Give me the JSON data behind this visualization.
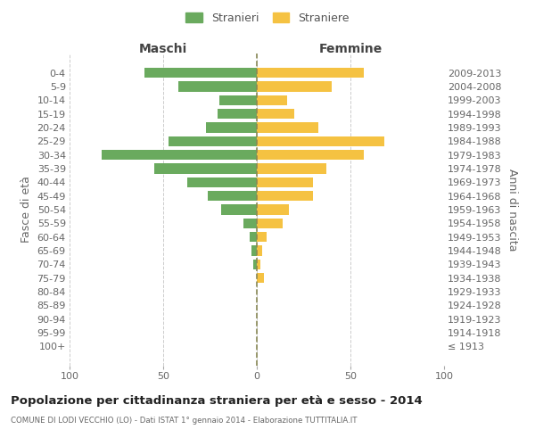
{
  "age_groups": [
    "100+",
    "95-99",
    "90-94",
    "85-89",
    "80-84",
    "75-79",
    "70-74",
    "65-69",
    "60-64",
    "55-59",
    "50-54",
    "45-49",
    "40-44",
    "35-39",
    "30-34",
    "25-29",
    "20-24",
    "15-19",
    "10-14",
    "5-9",
    "0-4"
  ],
  "birth_years": [
    "≤ 1913",
    "1914-1918",
    "1919-1923",
    "1924-1928",
    "1929-1933",
    "1934-1938",
    "1939-1943",
    "1944-1948",
    "1949-1953",
    "1954-1958",
    "1959-1963",
    "1964-1968",
    "1969-1973",
    "1974-1978",
    "1979-1983",
    "1984-1988",
    "1989-1993",
    "1994-1998",
    "1999-2003",
    "2004-2008",
    "2009-2013"
  ],
  "maschi": [
    0,
    0,
    0,
    0,
    0,
    0,
    2,
    3,
    4,
    7,
    19,
    26,
    37,
    55,
    83,
    47,
    27,
    21,
    20,
    42,
    60
  ],
  "femmine": [
    0,
    0,
    0,
    0,
    0,
    4,
    2,
    3,
    5,
    14,
    17,
    30,
    30,
    37,
    57,
    68,
    33,
    20,
    16,
    40,
    57
  ],
  "maschi_color": "#6aaa5e",
  "femmine_color": "#f5c242",
  "center_line_color": "#888855",
  "background_color": "#ffffff",
  "grid_color": "#cccccc",
  "title": "Popolazione per cittadinanza straniera per età e sesso - 2014",
  "subtitle": "COMUNE DI LODI VECCHIO (LO) - Dati ISTAT 1° gennaio 2014 - Elaborazione TUTTITALIA.IT",
  "ylabel_left": "Fasce di età",
  "ylabel_right": "Anni di nascita",
  "xlabel_left": "Maschi",
  "xlabel_right": "Femmine",
  "legend_stranieri": "Stranieri",
  "legend_straniere": "Straniere",
  "xlim": 100,
  "tick_fontsize": 8,
  "label_fontsize": 9
}
